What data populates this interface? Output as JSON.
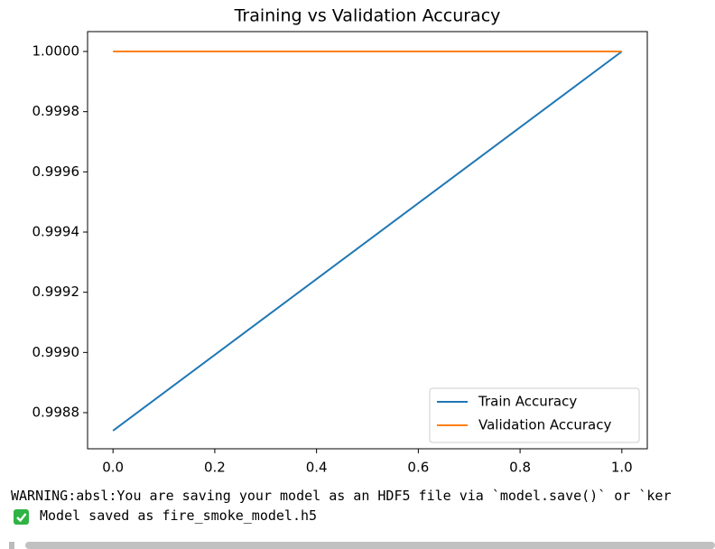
{
  "chart_data": {
    "type": "line",
    "title": "Training vs Validation Accuracy",
    "x": [
      0,
      1
    ],
    "series": [
      {
        "name": "Train Accuracy",
        "color": "#1f77b4",
        "values": [
          0.99874,
          1.0
        ]
      },
      {
        "name": "Validation Accuracy",
        "color": "#ff7f0e",
        "values": [
          1.0,
          1.0
        ]
      }
    ],
    "xlim": [
      -0.05,
      1.05
    ],
    "xticks": [
      {
        "value": 0,
        "label": "0.0"
      },
      0.2,
      0.4,
      0.6,
      0.8,
      {
        "value": 1,
        "label": "1.0"
      }
    ],
    "ylim": [
      0.99868,
      1.000066
    ],
    "yticks": [
      0.9988,
      {
        "value": 0.999,
        "label": "0.9990"
      },
      0.9992,
      0.9994,
      0.9996,
      0.9998,
      {
        "value": 1,
        "label": "1.0000"
      }
    ],
    "grid": false,
    "legend": "lower right"
  },
  "console": {
    "lines": [
      "WARNING:absl:You are saving your model as an HDF5 file via `model.save()` or `ker",
      "Model saved as fire_smoke_model.h5"
    ]
  }
}
